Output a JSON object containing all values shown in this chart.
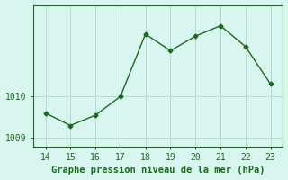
{
  "x": [
    14,
    15,
    16,
    17,
    18,
    19,
    20,
    21,
    22,
    23
  ],
  "y": [
    1009.6,
    1009.3,
    1009.55,
    1010.0,
    1011.5,
    1011.1,
    1011.45,
    1011.7,
    1011.2,
    1010.3
  ],
  "line_color": "#1a6b1a",
  "marker_color": "#1a6b1a",
  "bg_color": "#d9f5f0",
  "grid_color": "#b8dbd6",
  "axis_color": "#1a6b1a",
  "xlabel": "Graphe pression niveau de la mer (hPa)",
  "xlim": [
    13.5,
    23.5
  ],
  "ylim": [
    1008.8,
    1012.2
  ],
  "yticks": [
    1009,
    1010
  ],
  "xticks": [
    14,
    15,
    16,
    17,
    18,
    19,
    20,
    21,
    22,
    23
  ],
  "tick_fontsize": 7,
  "xlabel_fontsize": 7.5,
  "border_color": "#1a6b1a"
}
